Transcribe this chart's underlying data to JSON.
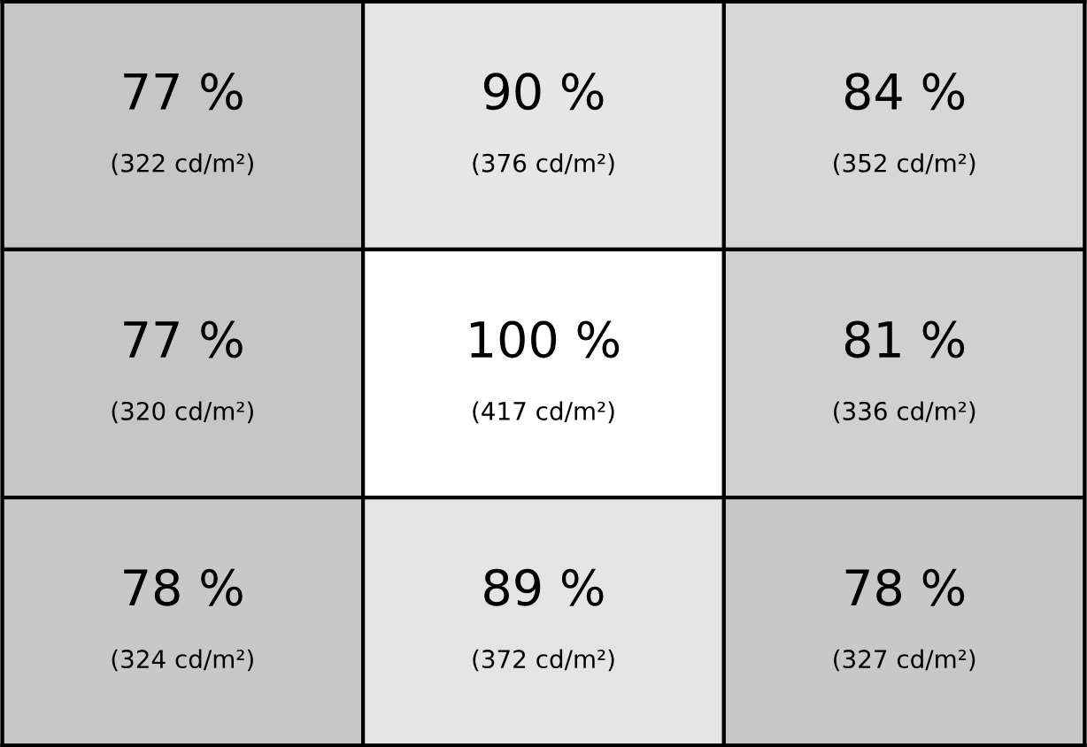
{
  "chart_data": {
    "type": "heatmap",
    "categories": [
      null,
      null,
      null
    ],
    "y_categories": [
      null,
      null,
      null
    ],
    "cells": [
      [
        77,
        90,
        84
      ],
      [
        77,
        100,
        81
      ],
      [
        78,
        89,
        78
      ]
    ],
    "cell_labels": [
      [
        "77 %",
        "90 %",
        "84 %"
      ],
      [
        "77 %",
        "100 %",
        "81 %"
      ],
      [
        "78 %",
        "89 %",
        "78 %"
      ]
    ],
    "annotations": [
      "(322 cd/m²)",
      "(376 cd/m²)",
      "(352 cd/m²)",
      "(320 cd/m²)",
      "(417 cd/m²)",
      "(336 cd/m²)",
      "(324 cd/m²)",
      "(372 cd/m²)",
      "(327 cd/m²)"
    ]
  }
}
